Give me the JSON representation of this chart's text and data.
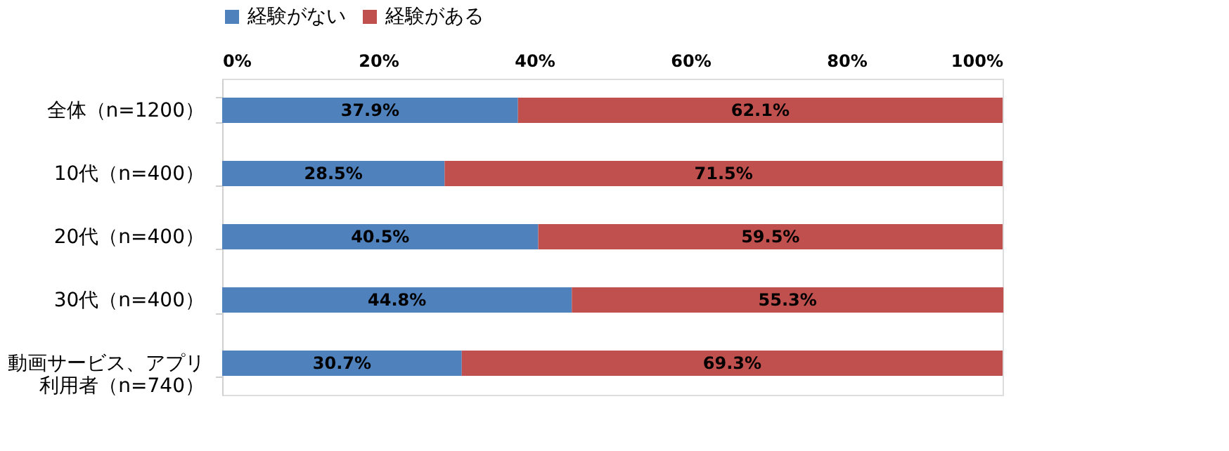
{
  "chart_data": {
    "type": "bar",
    "orientation": "horizontal",
    "stacked": true,
    "legend": "top",
    "grid": false,
    "categories": [
      "全体（n=1200）",
      "10代（n=400）",
      "20代（n=400）",
      "30代（n=400）",
      "動画サービス、アプリ利用者（n=740）"
    ],
    "series": [
      {
        "name": "経験がない",
        "color": "#4f81bd",
        "values": [
          37.9,
          28.5,
          40.5,
          44.8,
          30.7
        ],
        "value_labels": [
          "37.9%",
          "28.5%",
          "40.5%",
          "44.8%",
          "30.7%"
        ]
      },
      {
        "name": "経験がある",
        "color": "#c0504d",
        "values": [
          62.1,
          71.5,
          59.5,
          55.3,
          69.3
        ],
        "value_labels": [
          "62.1%",
          "71.5%",
          "59.5%",
          "55.3%",
          "69.3%"
        ]
      }
    ],
    "xlim": [
      0,
      100
    ],
    "xticks": [
      {
        "value": 0,
        "label": "0%"
      },
      {
        "value": 20,
        "label": "20%"
      },
      {
        "value": 40,
        "label": "40%"
      },
      {
        "value": 60,
        "label": "60%"
      },
      {
        "value": 80,
        "label": "80%"
      },
      {
        "value": 100,
        "label": "100%"
      }
    ]
  }
}
